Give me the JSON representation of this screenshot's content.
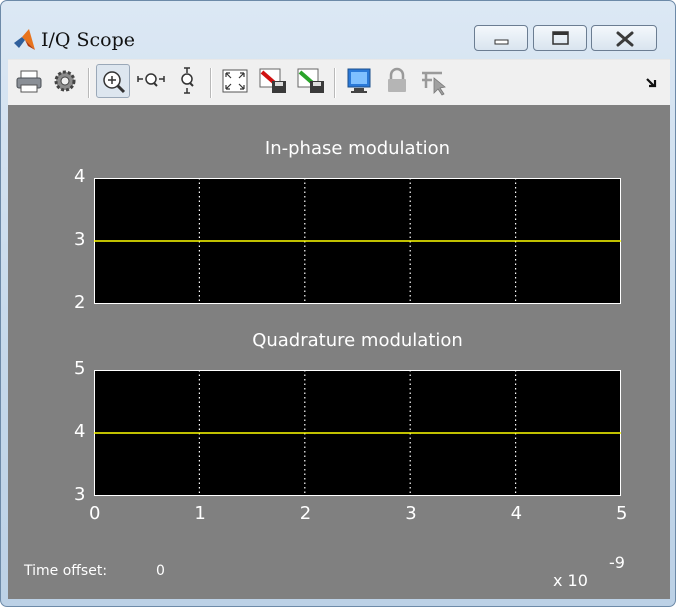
{
  "window": {
    "title": "I/Q Scope",
    "icons": {
      "app": "matlab-icon",
      "minimize": "minimize-icon",
      "maximize": "maximize-icon",
      "close": "close-icon"
    }
  },
  "toolbar": {
    "items": [
      {
        "name": "print-icon"
      },
      {
        "name": "parameters-icon"
      },
      {
        "name": "zoom-in-icon",
        "pressed": true
      },
      {
        "name": "zoom-x-icon"
      },
      {
        "name": "zoom-y-icon"
      },
      {
        "name": "autoscale-icon"
      },
      {
        "name": "save-axes-settings-icon"
      },
      {
        "name": "restore-axes-settings-icon"
      },
      {
        "name": "floating-scope-icon"
      },
      {
        "name": "lock-axes-icon"
      },
      {
        "name": "signal-selection-icon"
      },
      {
        "name": "dock-arrow-icon"
      }
    ]
  },
  "colors": {
    "plot_bg": "#000000",
    "trace": "#ffff00",
    "figure_bg": "#808080",
    "grid": "#ffffff"
  },
  "chart_data": [
    {
      "type": "line",
      "title": "In-phase modulation",
      "xlabel": "",
      "ylabel": "",
      "x": [
        0,
        5e-09
      ],
      "y": [
        3,
        3
      ],
      "xlim": [
        0,
        5e-09
      ],
      "ylim": [
        2,
        4
      ],
      "y_ticks": [
        "4",
        "3",
        "2"
      ],
      "grid": true
    },
    {
      "type": "line",
      "title": "Quadrature modulation",
      "xlabel": "",
      "ylabel": "",
      "x": [
        0,
        5e-09
      ],
      "y": [
        4,
        4
      ],
      "xlim": [
        0,
        5e-09
      ],
      "ylim": [
        3,
        5
      ],
      "y_ticks": [
        "5",
        "4",
        "3"
      ],
      "x_ticks": [
        "0",
        "1",
        "2",
        "3",
        "4",
        "5"
      ],
      "x_exponent": "-9",
      "x_multiplier": "x 10",
      "grid": true
    }
  ],
  "status": {
    "time_offset_label": "Time offset:",
    "time_offset_value": "0"
  }
}
